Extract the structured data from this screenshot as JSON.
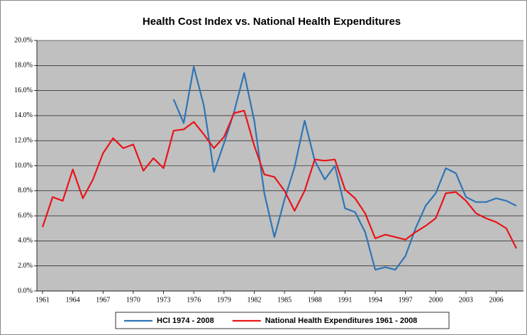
{
  "chart_data": {
    "type": "line",
    "title": "Health Cost Index vs. National Health Expenditures",
    "x": [
      1961,
      1962,
      1963,
      1964,
      1965,
      1966,
      1967,
      1968,
      1969,
      1970,
      1971,
      1972,
      1973,
      1974,
      1975,
      1976,
      1977,
      1978,
      1979,
      1980,
      1981,
      1982,
      1983,
      1984,
      1985,
      1986,
      1987,
      1988,
      1989,
      1990,
      1991,
      1992,
      1993,
      1994,
      1995,
      1996,
      1997,
      1998,
      1999,
      2000,
      2001,
      2002,
      2003,
      2004,
      2005,
      2006,
      2007,
      2008
    ],
    "xlim": [
      1961,
      2008
    ],
    "xticks": [
      1961,
      1964,
      1967,
      1970,
      1973,
      1976,
      1979,
      1982,
      1985,
      1988,
      1991,
      1994,
      1997,
      2000,
      2003,
      2006
    ],
    "ylim": [
      0,
      20
    ],
    "yticks": [
      {
        "value": 0,
        "label": "0.0%"
      },
      {
        "value": 2,
        "label": "2.0%"
      },
      {
        "value": 4,
        "label": "4.0%"
      },
      {
        "value": 6,
        "label": "6.0%"
      },
      {
        "value": 8,
        "label": "8.0%"
      },
      {
        "value": 10,
        "label": "10.0%"
      },
      {
        "value": 12,
        "label": "12.0%"
      },
      {
        "value": 14,
        "label": "14.0%"
      },
      {
        "value": 16,
        "label": "16.0%"
      },
      {
        "value": 18,
        "label": "18.0%"
      },
      {
        "value": 20,
        "label": "20.0%"
      }
    ],
    "grid": true,
    "legend": "bottom",
    "series": [
      {
        "name": "HCI 1974 - 2008",
        "color": "#2e75b6",
        "values": [
          null,
          null,
          null,
          null,
          null,
          null,
          null,
          null,
          null,
          null,
          null,
          null,
          null,
          15.3,
          13.4,
          17.9,
          14.8,
          9.5,
          11.8,
          14.3,
          17.4,
          13.6,
          7.8,
          4.3,
          7.3,
          9.9,
          13.6,
          10.4,
          8.9,
          10.0,
          6.6,
          6.3,
          4.7,
          1.7,
          1.9,
          1.7,
          2.8,
          5.0,
          6.8,
          7.8,
          9.8,
          9.4,
          7.5,
          7.1,
          7.1,
          7.4,
          7.2,
          6.8
        ]
      },
      {
        "name": "National Health Expenditures 1961 - 2008",
        "color": "#e8141a",
        "values": [
          5.1,
          7.5,
          7.2,
          9.7,
          7.4,
          8.9,
          11.0,
          12.2,
          11.4,
          11.7,
          9.6,
          10.6,
          9.8,
          12.8,
          12.9,
          13.5,
          12.5,
          11.4,
          12.3,
          14.2,
          14.4,
          11.6,
          9.3,
          9.1,
          8.0,
          6.4,
          8.0,
          10.5,
          10.4,
          10.5,
          8.1,
          7.4,
          6.2,
          4.2,
          4.5,
          4.3,
          4.1,
          4.7,
          5.2,
          5.8,
          7.8,
          7.9,
          7.2,
          6.2,
          5.8,
          5.5,
          5.0,
          3.4
        ]
      }
    ]
  }
}
